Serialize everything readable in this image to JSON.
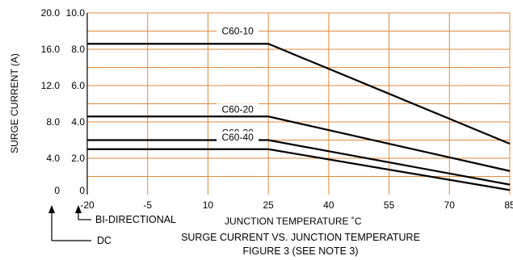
{
  "chart_data": {
    "type": "line",
    "caption": {
      "title": "SURGE CURRENT VS. JUNCTION TEMPERATURE",
      "figure": "FIGURE 3 (SEE NOTE 3)"
    },
    "xlabel": "JUNCTION TEMPERATURE ˚C",
    "ylabel": "SURGE CURRENT (A)",
    "x_ticks": [
      "-20",
      "-5",
      "10",
      "25",
      "40",
      "55",
      "70",
      "85"
    ],
    "x_values": [
      -20,
      -5,
      10,
      25,
      40,
      55,
      70,
      85
    ],
    "xlim": [
      -20,
      85
    ],
    "y_ticks_dc": [
      "0",
      "4.0",
      "8.0",
      "12.0",
      "16.0",
      "20.0"
    ],
    "y_ticks_bidirectional": [
      "0",
      "2.0",
      "4.0",
      "6.0",
      "8.0",
      "10.0"
    ],
    "ylim_bidirectional": [
      0,
      10
    ],
    "ylim_dc": [
      0,
      20
    ],
    "grid": true,
    "legend": {
      "bidirectional": "BI-DIRECTIONAL",
      "dc": "DC"
    },
    "series": [
      {
        "name": "C60-10",
        "x": [
          -20,
          25,
          85
        ],
        "y": [
          8.3,
          8.3,
          2.8
        ]
      },
      {
        "name": "C60-20",
        "x": [
          -20,
          25,
          85
        ],
        "y": [
          4.3,
          4.3,
          1.3
        ]
      },
      {
        "name": "C60-30",
        "x": [
          -20,
          25,
          85
        ],
        "y": [
          3.0,
          3.0,
          0.55
        ]
      },
      {
        "name": "C60-40",
        "x": [
          -20,
          25,
          85
        ],
        "y": [
          2.5,
          2.5,
          0.25
        ]
      }
    ],
    "colors": {
      "grid": "#e08a3c",
      "lines": "#000000"
    }
  }
}
